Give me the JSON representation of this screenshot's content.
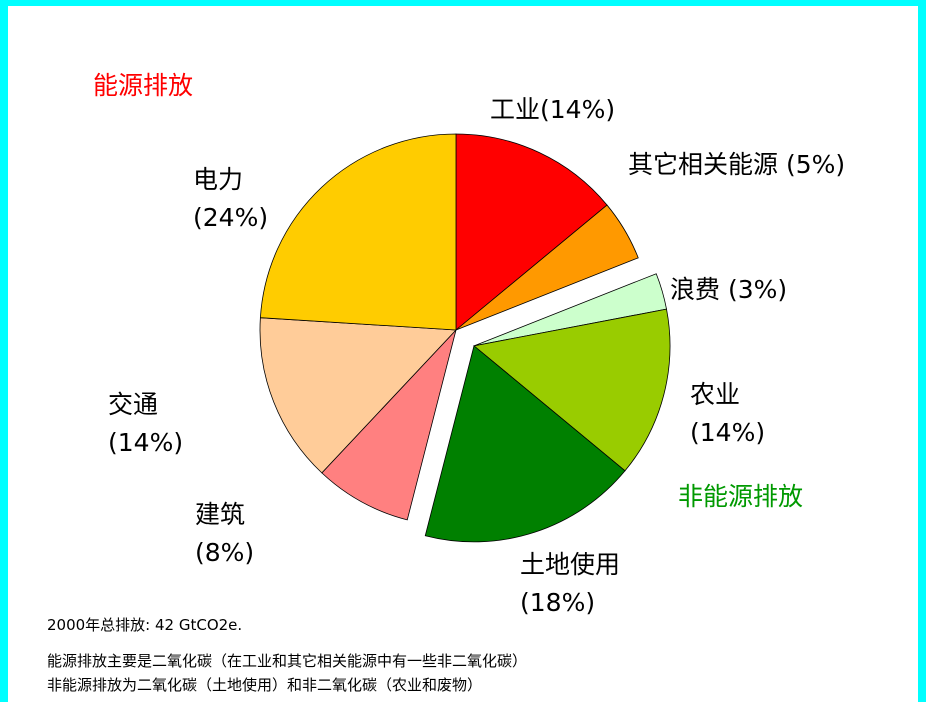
{
  "chart_data": {
    "type": "pie",
    "categories": [
      "工业",
      "其它相关能源",
      "浪费",
      "农业",
      "土地使用",
      "建筑",
      "交通",
      "电力"
    ],
    "values": [
      14,
      5,
      3,
      14,
      18,
      8,
      14,
      24
    ],
    "value_labels": [
      "(14%)",
      "(5%)",
      "(3%)",
      "(14%)",
      "(18%)",
      "(8%)",
      "(14%)",
      "(24%)"
    ],
    "colors": [
      "#ff0000",
      "#ff9900",
      "#ccffcc",
      "#99cc00",
      "#008000",
      "#ff8080",
      "#ffcc99",
      "#ffcc00"
    ],
    "slice_group": [
      0,
      0,
      1,
      1,
      1,
      0,
      0,
      0
    ],
    "groups": [
      {
        "label": "能源排放",
        "color": "#ff0000"
      },
      {
        "label": "非能源排放",
        "color": "#009900"
      }
    ],
    "exploded_group": 1,
    "notes": [
      "2000年总排放: 42 GtCO2e.",
      "能源排放主要是二氧化碳（在工业和其它相关能源中有一些非二氧化碳）",
      "非能源排放为二氧化碳（土地使用）和非二氧化碳（农业和废物）"
    ]
  }
}
